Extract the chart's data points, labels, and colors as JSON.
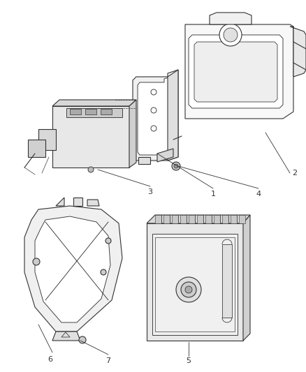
{
  "bg_color": "#ffffff",
  "line_color": "#333333",
  "label_color": "#000000",
  "fig_width": 4.38,
  "fig_height": 5.33,
  "dpi": 100,
  "lw": 0.8
}
